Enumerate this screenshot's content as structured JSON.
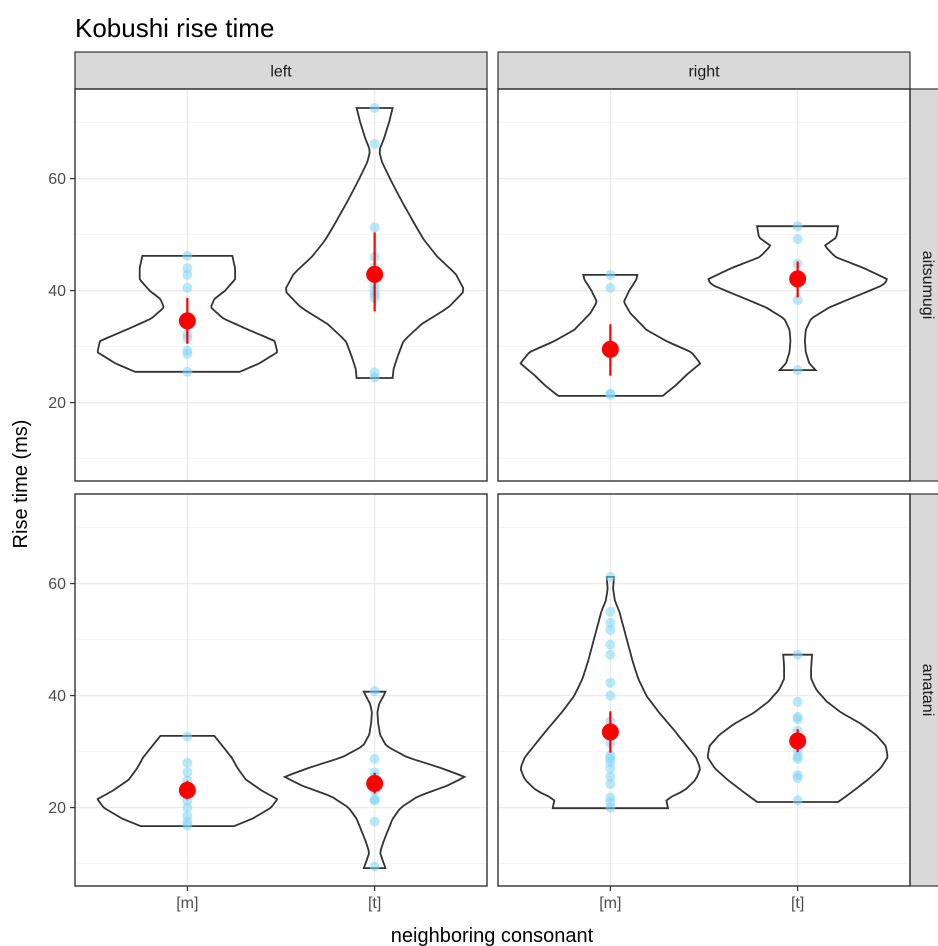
{
  "chart_data": {
    "type": "violin",
    "title": "Kobushi rise time",
    "xlabel": "neighboring consonant",
    "ylabel": "Rise time (ms)",
    "categories": [
      "[m]",
      "[t]"
    ],
    "facet_columns": [
      "left",
      "right"
    ],
    "facet_rows": [
      "aitsumugi",
      "anatani"
    ],
    "ylim": [
      6,
      76
    ],
    "yticks": [
      20,
      40,
      60
    ],
    "grid": true,
    "colors": {
      "points": "#7fd6f7",
      "mean": "#ff0000",
      "violin_outline": "#333333",
      "strip_fill": "#d9d9d9"
    },
    "panels": [
      {
        "column": "left",
        "row": "aitsumugi",
        "groups": [
          {
            "category": "[m]",
            "points": [
              25.5,
              28.7,
              29.3,
              31.5,
              32.2,
              40.5,
              42.8,
              44.0,
              46.2
            ],
            "mean": 34.6,
            "ci": [
              30.5,
              38.7
            ],
            "violin": {
              "min": 25.5,
              "max": 46.2,
              "profile": [
                [
                  25.5,
                  0.58
                ],
                [
                  27,
                  0.8
                ],
                [
                  29,
                  1.0
                ],
                [
                  31,
                  0.97
                ],
                [
                  33,
                  0.68
                ],
                [
                  35,
                  0.4
                ],
                [
                  37,
                  0.26
                ],
                [
                  38.5,
                  0.3
                ],
                [
                  40,
                  0.42
                ],
                [
                  42,
                  0.53
                ],
                [
                  44,
                  0.53
                ],
                [
                  46.2,
                  0.5
                ]
              ]
            }
          },
          {
            "category": "[t]",
            "points": [
              24.5,
              25.4,
              38.7,
              39.3,
              40.0,
              41.0,
              44.2,
              46.0,
              51.3,
              66.2,
              72.6
            ],
            "mean": 42.9,
            "ci": [
              36.3,
              50.4
            ],
            "violin": {
              "min": 24.4,
              "max": 72.6,
              "profile": [
                [
                  24.4,
                  0.2
                ],
                [
                  26,
                  0.21
                ],
                [
                  28,
                  0.25
                ],
                [
                  31,
                  0.32
                ],
                [
                  34,
                  0.52
                ],
                [
                  37,
                  0.82
                ],
                [
                  40,
                  1.0
                ],
                [
                  43,
                  0.9
                ],
                [
                  46,
                  0.7
                ],
                [
                  49,
                  0.55
                ],
                [
                  52,
                  0.44
                ],
                [
                  56,
                  0.3
                ],
                [
                  60,
                  0.17
                ],
                [
                  63,
                  0.08
                ],
                [
                  65,
                  0.05
                ],
                [
                  67,
                  0.1
                ],
                [
                  70,
                  0.16
                ],
                [
                  72.6,
                  0.2
                ]
              ]
            }
          }
        ]
      },
      {
        "column": "right",
        "row": "aitsumugi",
        "groups": [
          {
            "category": "[m]",
            "points": [
              21.4,
              21.6,
              29.5,
              30.4,
              40.5,
              42.8
            ],
            "mean": 29.5,
            "ci": [
              24.8,
              34.0
            ],
            "violin": {
              "min": 21.2,
              "max": 42.8,
              "profile": [
                [
                  21.2,
                  0.58
                ],
                [
                  23,
                  0.72
                ],
                [
                  25,
                  0.85
                ],
                [
                  27,
                  1.0
                ],
                [
                  29,
                  0.9
                ],
                [
                  31,
                  0.62
                ],
                [
                  33,
                  0.4
                ],
                [
                  36,
                  0.22
                ],
                [
                  38,
                  0.15
                ],
                [
                  40,
                  0.21
                ],
                [
                  42,
                  0.29
                ],
                [
                  42.8,
                  0.3
                ]
              ]
            }
          },
          {
            "category": "[t]",
            "points": [
              25.8,
              38.3,
              41.5,
              44.8,
              49.2,
              51.5
            ],
            "mean": 42.1,
            "ci": [
              38.8,
              45.2
            ],
            "violin": {
              "min": 25.8,
              "max": 51.5,
              "profile": [
                [
                  25.8,
                  0.2
                ],
                [
                  27,
                  0.13
                ],
                [
                  29,
                  0.09
                ],
                [
                  31,
                  0.08
                ],
                [
                  33,
                  0.09
                ],
                [
                  35,
                  0.15
                ],
                [
                  37,
                  0.35
                ],
                [
                  39,
                  0.65
                ],
                [
                  41,
                  0.95
                ],
                [
                  42,
                  1.0
                ],
                [
                  44,
                  0.74
                ],
                [
                  46,
                  0.42
                ],
                [
                  48,
                  0.3
                ],
                [
                  49.5,
                  0.43
                ],
                [
                  51.5,
                  0.45
                ]
              ]
            }
          }
        ]
      },
      {
        "column": "left",
        "row": "anatani",
        "groups": [
          {
            "category": "[m]",
            "points": [
              16.8,
              17.5,
              18.5,
              20.0,
              21.2,
              22.1,
              23.0,
              24.8,
              26.3,
              28.0,
              32.7
            ],
            "mean": 23.1,
            "ci": [
              21.5,
              24.8
            ],
            "violin": {
              "min": 16.7,
              "max": 32.8,
              "profile": [
                [
                  16.7,
                  0.52
                ],
                [
                  18,
                  0.72
                ],
                [
                  20,
                  0.93
                ],
                [
                  21.5,
                  1.0
                ],
                [
                  23,
                  0.83
                ],
                [
                  25,
                  0.65
                ],
                [
                  27,
                  0.56
                ],
                [
                  29,
                  0.49
                ],
                [
                  31,
                  0.39
                ],
                [
                  32.8,
                  0.3
                ]
              ]
            }
          },
          {
            "category": "[t]",
            "points": [
              9.5,
              17.5,
              21.3,
              21.5,
              23.0,
              25.5,
              26.3,
              28.7,
              40.8
            ],
            "mean": 24.3,
            "ci": [
              22.5,
              26.2
            ],
            "violin": {
              "min": 9.2,
              "max": 40.7,
              "profile": [
                [
                  9.2,
                  0.12
                ],
                [
                  10.5,
                  0.09
                ],
                [
                  12,
                  0.06
                ],
                [
                  14,
                  0.1
                ],
                [
                  16,
                  0.15
                ],
                [
                  18,
                  0.2
                ],
                [
                  20,
                  0.29
                ],
                [
                  22,
                  0.48
                ],
                [
                  24,
                  0.82
                ],
                [
                  25.5,
                  1.0
                ],
                [
                  27,
                  0.75
                ],
                [
                  29,
                  0.36
                ],
                [
                  31,
                  0.13
                ],
                [
                  33,
                  0.06
                ],
                [
                  35,
                  0.04
                ],
                [
                  37,
                  0.03
                ],
                [
                  38.5,
                  0.05
                ],
                [
                  40,
                  0.1
                ],
                [
                  40.7,
                  0.12
                ]
              ]
            }
          }
        ]
      },
      {
        "column": "right",
        "row": "anatani",
        "groups": [
          {
            "category": "[m]",
            "points": [
              20.0,
              21.0,
              21.8,
              24.2,
              25.5,
              27.0,
              28.1,
              28.8,
              29.3,
              31.5,
              34.2,
              35.4,
              40.0,
              42.3,
              47.3,
              49.1,
              51.7,
              53.0,
              55.0,
              61.2
            ],
            "mean": 33.5,
            "ci": [
              29.8,
              37.2
            ],
            "violin": {
              "min": 19.9,
              "max": 61.2,
              "profile": [
                [
                  19.9,
                  0.64
                ],
                [
                  21.5,
                  0.62
                ],
                [
                  23,
                  0.82
                ],
                [
                  25,
                  0.95
                ],
                [
                  27,
                  1.0
                ],
                [
                  29,
                  0.95
                ],
                [
                  31,
                  0.85
                ],
                [
                  34,
                  0.7
                ],
                [
                  37,
                  0.54
                ],
                [
                  40,
                  0.4
                ],
                [
                  43,
                  0.31
                ],
                [
                  46,
                  0.25
                ],
                [
                  49,
                  0.2
                ],
                [
                  52,
                  0.15
                ],
                [
                  55,
                  0.1
                ],
                [
                  57,
                  0.05
                ],
                [
                  59,
                  0.03
                ],
                [
                  61.2,
                  0.04
                ]
              ]
            }
          },
          {
            "category": "[t]",
            "points": [
              21.3,
              25.3,
              25.8,
              28.7,
              29.1,
              30.2,
              32.0,
              33.7,
              35.8,
              36.2,
              38.9,
              47.3
            ],
            "mean": 31.9,
            "ci": [
              29.9,
              34.0
            ],
            "violin": {
              "min": 21.0,
              "max": 47.3,
              "profile": [
                [
                  21.0,
                  0.45
                ],
                [
                  23,
                  0.62
                ],
                [
                  25,
                  0.78
                ],
                [
                  27,
                  0.92
                ],
                [
                  29,
                  1.0
                ],
                [
                  31,
                  0.98
                ],
                [
                  33,
                  0.87
                ],
                [
                  35,
                  0.7
                ],
                [
                  37,
                  0.48
                ],
                [
                  39,
                  0.32
                ],
                [
                  41,
                  0.21
                ],
                [
                  43,
                  0.15
                ],
                [
                  45,
                  0.15
                ],
                [
                  47.3,
                  0.16
                ]
              ]
            }
          }
        ]
      }
    ]
  }
}
